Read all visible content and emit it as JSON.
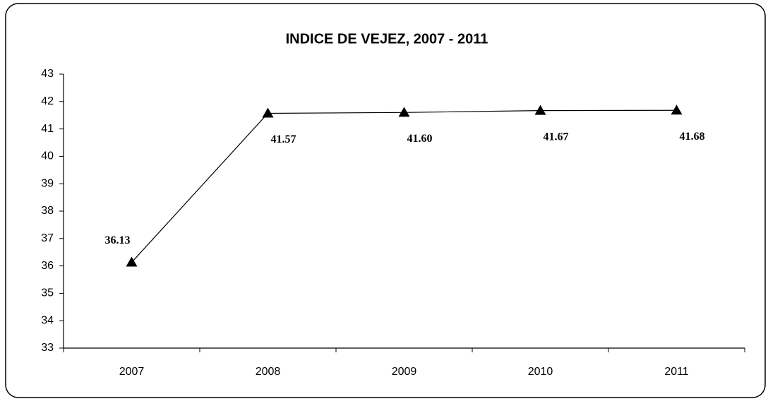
{
  "chart_data": {
    "type": "line",
    "title": "INDICE DE VEJEZ, 2007  - 2011",
    "categories": [
      "2007",
      "2008",
      "2009",
      "2010",
      "2011"
    ],
    "values": [
      36.13,
      41.57,
      41.6,
      41.67,
      41.68
    ],
    "value_labels": [
      "36.13",
      "41.57",
      "41.60",
      "41.67",
      "41.68"
    ],
    "color": "#000000",
    "ylim": [
      33,
      43
    ],
    "yticks": [
      33,
      34,
      35,
      36,
      37,
      38,
      39,
      40,
      41,
      42,
      43
    ],
    "grid": false
  }
}
